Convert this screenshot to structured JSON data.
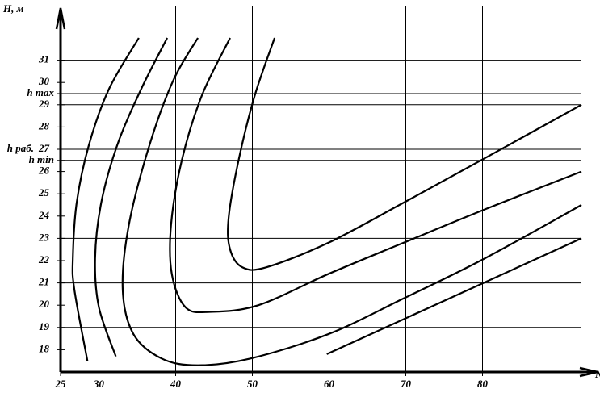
{
  "chart_data": {
    "type": "line",
    "y_label": "H, м",
    "x_label": "N",
    "color": "#000000",
    "xlim": [
      25,
      95
    ],
    "ylim": [
      17,
      33
    ],
    "xticks": [
      25,
      30,
      40,
      50,
      60,
      70,
      80
    ],
    "xgrid": [
      30,
      40,
      50,
      60,
      70,
      80
    ],
    "yticks": [
      18,
      19,
      20,
      21,
      22,
      23,
      24,
      25,
      26,
      27,
      28,
      29,
      30,
      31,
      {
        "value": 29.5,
        "label": "h max"
      },
      {
        "value": 27,
        "label": "h раб."
      },
      {
        "value": 26.5,
        "label": "h min"
      }
    ],
    "ygrid": [
      19,
      21,
      23,
      26.5,
      27,
      29,
      29.5,
      31
    ],
    "series": [
      {
        "x": [
          35.2,
          31.3,
          28.7,
          27.1,
          26.6,
          26.8,
          28.5
        ],
        "y": [
          32.0,
          29.7,
          27.2,
          24.6,
          22.1,
          20.7,
          17.5
        ]
      },
      {
        "x": [
          38.9,
          35.5,
          32.4,
          30.3,
          29.5,
          30.0,
          32.2
        ],
        "y": [
          32.0,
          29.7,
          27.2,
          24.6,
          22.1,
          19.9,
          17.7
        ]
      },
      {
        "x": [
          42.9,
          39.7,
          36.6,
          33.9,
          33.1,
          34.5,
          38.2,
          42.9,
          49.7,
          59.9,
          69.7,
          80.3,
          92.9
        ],
        "y": [
          32.0,
          30.1,
          27.2,
          23.6,
          20.7,
          18.7,
          17.6,
          17.3,
          17.6,
          18.7,
          20.3,
          22.1,
          24.5
        ]
      },
      {
        "x": [
          47.1,
          43.4,
          40.8,
          39.4,
          39.5,
          41.3,
          44.5,
          50.8,
          59.9,
          69.7,
          80.3,
          92.9
        ],
        "y": [
          32.0,
          29.4,
          26.5,
          23.6,
          21.4,
          19.9,
          19.7,
          20.0,
          21.4,
          22.8,
          24.3,
          26.0
        ]
      },
      {
        "x": [
          52.9,
          50.3,
          48.2,
          46.9,
          47.1,
          48.7,
          51.8,
          59.9,
          69.7,
          80.3,
          92.9
        ],
        "y": [
          32.0,
          29.4,
          26.5,
          23.9,
          22.5,
          21.7,
          21.7,
          22.8,
          24.6,
          26.6,
          29.0
        ]
      },
      {
        "x": [
          59.7,
          92.9
        ],
        "y": [
          17.8,
          23.0
        ]
      }
    ]
  }
}
